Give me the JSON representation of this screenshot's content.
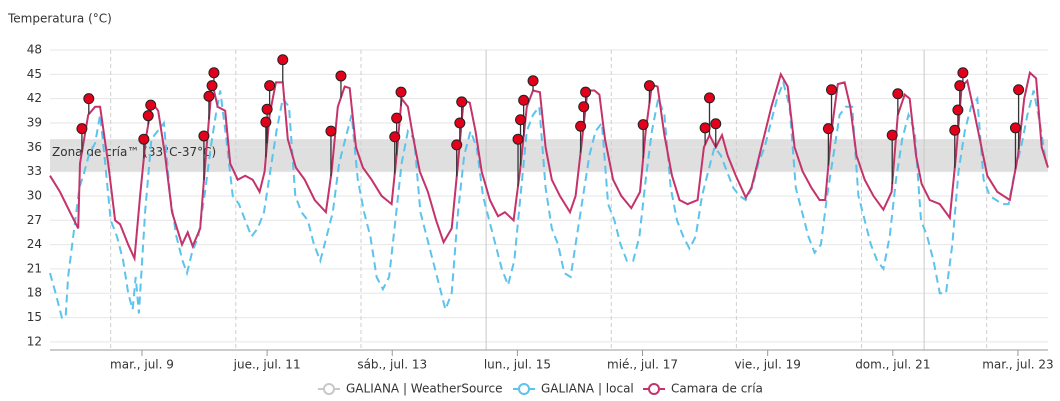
{
  "chart_data": {
    "type": "line",
    "y_label": "Temperatura (°C)",
    "ylim": [
      11,
      48
    ],
    "yticks": [
      12,
      15,
      18,
      21,
      24,
      27,
      30,
      33,
      36,
      39,
      42,
      45,
      48
    ],
    "xlim": [
      7.53,
      23.48
    ],
    "xticks": [
      {
        "value": 9,
        "label": "mar., jul. 9"
      },
      {
        "value": 11,
        "label": "jue., jul. 11"
      },
      {
        "value": 13,
        "label": "sáb., jul. 13"
      },
      {
        "value": 15,
        "label": "lun., jul. 15"
      },
      {
        "value": 17,
        "label": "mié., jul. 17"
      },
      {
        "value": 19,
        "label": "vie., jul. 19"
      },
      {
        "value": 21,
        "label": "dom., jul. 21"
      },
      {
        "value": 23,
        "label": "mar., jul. 23"
      }
    ],
    "xgrid": [
      8.5,
      10.5,
      12.5,
      16.5,
      18.5,
      20.5,
      22.5
    ],
    "week_lines": [
      14.5,
      21.5
    ],
    "grid": true,
    "band": {
      "range": [
        33,
        37
      ],
      "label": "Zona de cría™ (33°C-37°C)",
      "color": "#d9d9d9"
    },
    "series": [
      {
        "name": "GALIANA | WeatherSource",
        "color": "#c8c8c8",
        "visible": false,
        "x": [],
        "values": []
      },
      {
        "name": "GALIANA | local",
        "color": "#5cc3ec",
        "dashed": true,
        "x": [
          7.53,
          7.62,
          7.72,
          7.78,
          7.82,
          7.9,
          8.0,
          8.08,
          8.15,
          8.25,
          8.33,
          8.4,
          8.5,
          8.6,
          8.7,
          8.78,
          8.85,
          8.9,
          8.95,
          9.05,
          9.15,
          9.25,
          9.35,
          9.45,
          9.55,
          9.65,
          9.72,
          9.8,
          9.9,
          10.0,
          10.1,
          10.18,
          10.25,
          10.35,
          10.45,
          10.55,
          10.65,
          10.75,
          10.85,
          10.95,
          11.05,
          11.15,
          11.25,
          11.35,
          11.45,
          11.55,
          11.65,
          11.75,
          11.85,
          11.95,
          12.05,
          12.15,
          12.25,
          12.35,
          12.45,
          12.55,
          12.65,
          12.75,
          12.85,
          12.95,
          13.05,
          13.15,
          13.25,
          13.35,
          13.45,
          13.55,
          13.65,
          13.75,
          13.85,
          13.95,
          14.05,
          14.15,
          14.25,
          14.35,
          14.45,
          14.55,
          14.65,
          14.75,
          14.85,
          14.95,
          15.05,
          15.15,
          15.25,
          15.35,
          15.45,
          15.55,
          15.65,
          15.75,
          15.85,
          15.95,
          16.05,
          16.15,
          16.25,
          16.35,
          16.45,
          16.55,
          16.65,
          16.75,
          16.85,
          16.95,
          17.05,
          17.15,
          17.25,
          17.35,
          17.45,
          17.55,
          17.65,
          17.75,
          17.85,
          17.95,
          18.05,
          18.15,
          18.25,
          18.35,
          18.45,
          18.55,
          18.65,
          18.75,
          18.85,
          18.95,
          19.05,
          19.15,
          19.25,
          19.35,
          19.45,
          19.55,
          19.65,
          19.75,
          19.85,
          19.95,
          20.05,
          20.15,
          20.25,
          20.35,
          20.45,
          20.55,
          20.65,
          20.75,
          20.85,
          20.95,
          21.05,
          21.15,
          21.25,
          21.35,
          21.45,
          21.55,
          21.65,
          21.75,
          21.85,
          21.95,
          22.05,
          22.15,
          22.25,
          22.35,
          22.45,
          22.55,
          22.65,
          22.75,
          22.85,
          22.95,
          23.05,
          23.15,
          23.25,
          23.35,
          23.45
        ],
        "values": [
          20.5,
          18,
          15,
          15,
          20,
          25,
          31,
          33,
          35,
          36.5,
          40,
          35,
          27,
          25,
          22,
          18,
          16,
          20,
          15.5,
          28,
          37,
          38,
          39,
          30,
          25,
          22,
          20.5,
          23,
          25,
          30,
          36,
          40,
          43,
          37,
          30,
          29,
          27,
          25,
          26,
          28,
          33,
          38,
          42,
          41,
          30,
          28,
          27,
          24,
          22,
          25,
          28,
          34,
          37,
          40,
          32,
          28,
          25,
          20,
          18.5,
          20,
          27,
          34,
          38,
          37,
          28,
          25,
          22,
          19,
          16,
          18,
          28,
          35,
          38,
          36,
          30,
          27,
          24,
          21,
          19,
          22,
          30,
          38,
          40,
          41,
          31,
          26,
          24,
          20.5,
          20,
          25,
          30,
          35,
          38,
          39,
          29,
          27,
          24,
          22,
          22,
          25,
          32,
          38,
          42,
          40,
          31,
          27,
          25,
          23.5,
          25,
          30,
          33,
          36,
          35,
          33,
          31,
          30,
          29.5,
          31,
          34,
          36,
          39,
          42,
          44,
          41,
          31,
          28,
          25,
          23,
          24,
          30,
          35,
          40,
          41,
          41,
          30,
          27,
          24,
          22,
          21,
          25,
          32,
          37,
          40,
          38,
          27,
          25,
          22,
          18,
          18,
          24,
          33,
          38,
          41,
          42,
          32,
          30,
          29.5,
          29,
          29,
          33,
          36,
          40,
          43,
          39,
          34
        ]
      },
      {
        "name": "Camara de cría",
        "color": "#c4336a",
        "x": [
          7.53,
          7.69,
          7.85,
          7.98,
          8.01,
          8.14,
          8.25,
          8.33,
          8.46,
          8.57,
          8.65,
          8.78,
          8.88,
          8.97,
          9.06,
          9.16,
          9.26,
          9.37,
          9.48,
          9.64,
          9.73,
          9.81,
          9.93,
          10.01,
          10.12,
          10.21,
          10.33,
          10.41,
          10.53,
          10.65,
          10.77,
          10.88,
          10.96,
          11.04,
          11.14,
          11.25,
          11.33,
          11.46,
          11.6,
          11.76,
          11.94,
          12.03,
          12.13,
          12.24,
          12.32,
          12.42,
          12.53,
          12.67,
          12.83,
          12.99,
          13.07,
          13.15,
          13.25,
          13.34,
          13.44,
          13.57,
          13.7,
          13.82,
          13.95,
          14.05,
          14.14,
          14.24,
          14.33,
          14.43,
          14.56,
          14.69,
          14.8,
          14.94,
          15.04,
          15.15,
          15.25,
          15.36,
          15.45,
          15.55,
          15.68,
          15.84,
          15.93,
          16.02,
          16.12,
          16.23,
          16.31,
          16.4,
          16.53,
          16.66,
          16.82,
          16.96,
          17.05,
          17.15,
          17.24,
          17.35,
          17.47,
          17.59,
          17.72,
          17.88,
          17.98,
          18.07,
          18.17,
          18.27,
          18.36,
          18.49,
          18.65,
          18.74,
          18.9,
          19.06,
          19.21,
          19.32,
          19.43,
          19.56,
          19.7,
          19.83,
          19.92,
          20.02,
          20.12,
          20.23,
          20.32,
          20.42,
          20.55,
          20.69,
          20.85,
          20.98,
          21.08,
          21.19,
          21.27,
          21.37,
          21.46,
          21.59,
          21.75,
          21.91,
          22.01,
          22.1,
          22.19,
          22.31,
          22.39,
          22.51,
          22.67,
          22.87,
          23.0,
          23.1,
          23.19,
          23.29,
          23.38,
          23.48
        ],
        "values": [
          32.5,
          30.5,
          28,
          26,
          34,
          40,
          41,
          41,
          34,
          27,
          26.5,
          24,
          22.3,
          30,
          37,
          41.5,
          40.5,
          35,
          28,
          24,
          25.5,
          23.8,
          26,
          34,
          44,
          41,
          40.5,
          34,
          32,
          32.5,
          32,
          30.5,
          33,
          40,
          44,
          44,
          37,
          33.5,
          32,
          29.5,
          28,
          33,
          41,
          43.5,
          43.3,
          36,
          33.5,
          32,
          30,
          29,
          35,
          42,
          41,
          37,
          33,
          30.5,
          27,
          24.3,
          26,
          34,
          41.8,
          41.5,
          38,
          33,
          29.5,
          27.5,
          28,
          27,
          33,
          41,
          43,
          42.8,
          36,
          32,
          30,
          28,
          30,
          36,
          43,
          43,
          42.5,
          37,
          32,
          30,
          28.5,
          30.5,
          38,
          43.7,
          43.5,
          37.5,
          32.5,
          29.5,
          29,
          29.5,
          36,
          37.5,
          36,
          37.5,
          35,
          32.5,
          29.8,
          31,
          36,
          41,
          45,
          43.5,
          36,
          33,
          31,
          29.5,
          29.5,
          38,
          43.8,
          44,
          41,
          35,
          32,
          30,
          28.3,
          30.5,
          40,
          42.5,
          42,
          35,
          31.5,
          29.5,
          29,
          27.3,
          35,
          43.5,
          44.2,
          40,
          37,
          32.5,
          30.5,
          29.5,
          35,
          42,
          45.2,
          44.5,
          36,
          33.5
        ]
      }
    ],
    "events": {
      "color": "#e3001b",
      "x": [
        8.04,
        8.15,
        9.03,
        9.1,
        9.14,
        9.99,
        10.07,
        10.12,
        10.15,
        10.98,
        11.0,
        11.04,
        11.25,
        12.02,
        12.18,
        13.04,
        13.07,
        13.14,
        14.03,
        14.08,
        14.11,
        15.01,
        15.05,
        15.1,
        15.25,
        16.01,
        16.06,
        16.09,
        17.01,
        17.11,
        18.0,
        18.07,
        18.17,
        19.97,
        20.02,
        20.99,
        21.08,
        21.99,
        22.04,
        22.07,
        22.12,
        22.96,
        23.01
      ],
      "values": [
        38.3,
        42.0,
        37.0,
        39.9,
        41.2,
        37.4,
        42.3,
        43.6,
        45.2,
        39.1,
        40.7,
        43.6,
        46.8,
        38.0,
        44.8,
        37.3,
        39.6,
        42.8,
        36.3,
        39.0,
        41.6,
        37.0,
        39.4,
        41.8,
        44.2,
        38.6,
        41.0,
        42.8,
        38.8,
        43.6,
        38.4,
        42.1,
        38.9,
        38.3,
        43.1,
        37.5,
        42.6,
        38.1,
        40.6,
        43.6,
        45.2,
        38.4,
        43.1
      ]
    }
  }
}
